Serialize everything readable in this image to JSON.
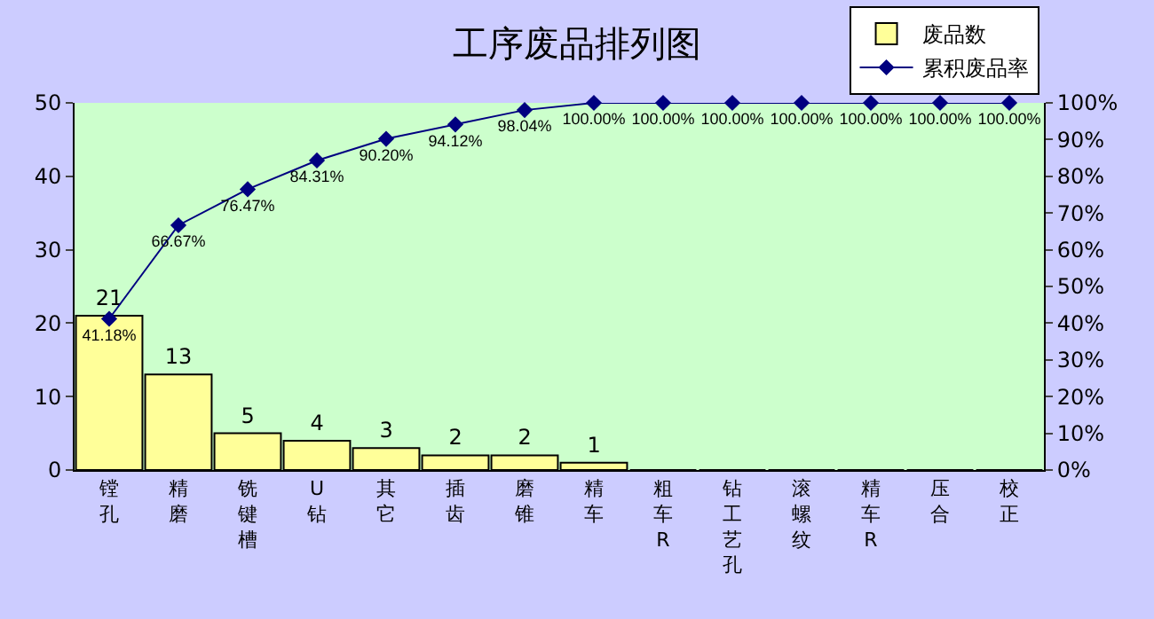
{
  "chart_data": {
    "type": "bar",
    "title": "工序废品排列图",
    "categories": [
      "镗孔",
      "精磨",
      "铣键槽",
      "U钻",
      "其它",
      "插齿",
      "磨锥",
      "精车",
      "粗车R",
      "钻工艺孔",
      "滚螺纹",
      "精车R",
      "压合",
      "校正"
    ],
    "series": [
      {
        "name": "废品数",
        "color": "#ffff99",
        "values": [
          21,
          13,
          5,
          4,
          3,
          2,
          2,
          1,
          0,
          0,
          0,
          0,
          0,
          0
        ],
        "value_labels": [
          "21",
          "13",
          "5",
          "4",
          "3",
          "2",
          "2",
          "1",
          null,
          null,
          null,
          null,
          null,
          null
        ]
      },
      {
        "name": "累积废品率",
        "type": "line",
        "axis": "y2",
        "color": "#000080",
        "values": [
          41.18,
          66.67,
          76.47,
          84.31,
          90.2,
          94.12,
          98.04,
          100,
          100,
          100,
          100,
          100,
          100,
          100
        ],
        "value_labels": [
          "41.18%",
          "66.67%",
          "76.47%",
          "84.31%",
          "90.20%",
          "94.12%",
          "98.04%",
          "100.00%",
          "100.00%",
          "100.00%",
          "100.00%",
          "100.00%",
          "100.00%",
          "100.00%"
        ]
      }
    ],
    "ylim": [
      0,
      50
    ],
    "yticks": [
      0,
      10,
      20,
      30,
      40,
      50
    ],
    "y2lim": [
      0,
      100
    ],
    "y2ticks": [
      {
        "value": 0,
        "label": "0%"
      },
      {
        "value": 10,
        "label": "10%"
      },
      {
        "value": 20,
        "label": "20%"
      },
      {
        "value": 30,
        "label": "30%"
      },
      {
        "value": 40,
        "label": "40%"
      },
      {
        "value": 50,
        "label": "50%"
      },
      {
        "value": 60,
        "label": "60%"
      },
      {
        "value": 70,
        "label": "70%"
      },
      {
        "value": 80,
        "label": "80%"
      },
      {
        "value": 90,
        "label": "90%"
      },
      {
        "value": 100,
        "label": "100%"
      }
    ],
    "legend": "top right",
    "marker": "diamond",
    "grid": false
  }
}
